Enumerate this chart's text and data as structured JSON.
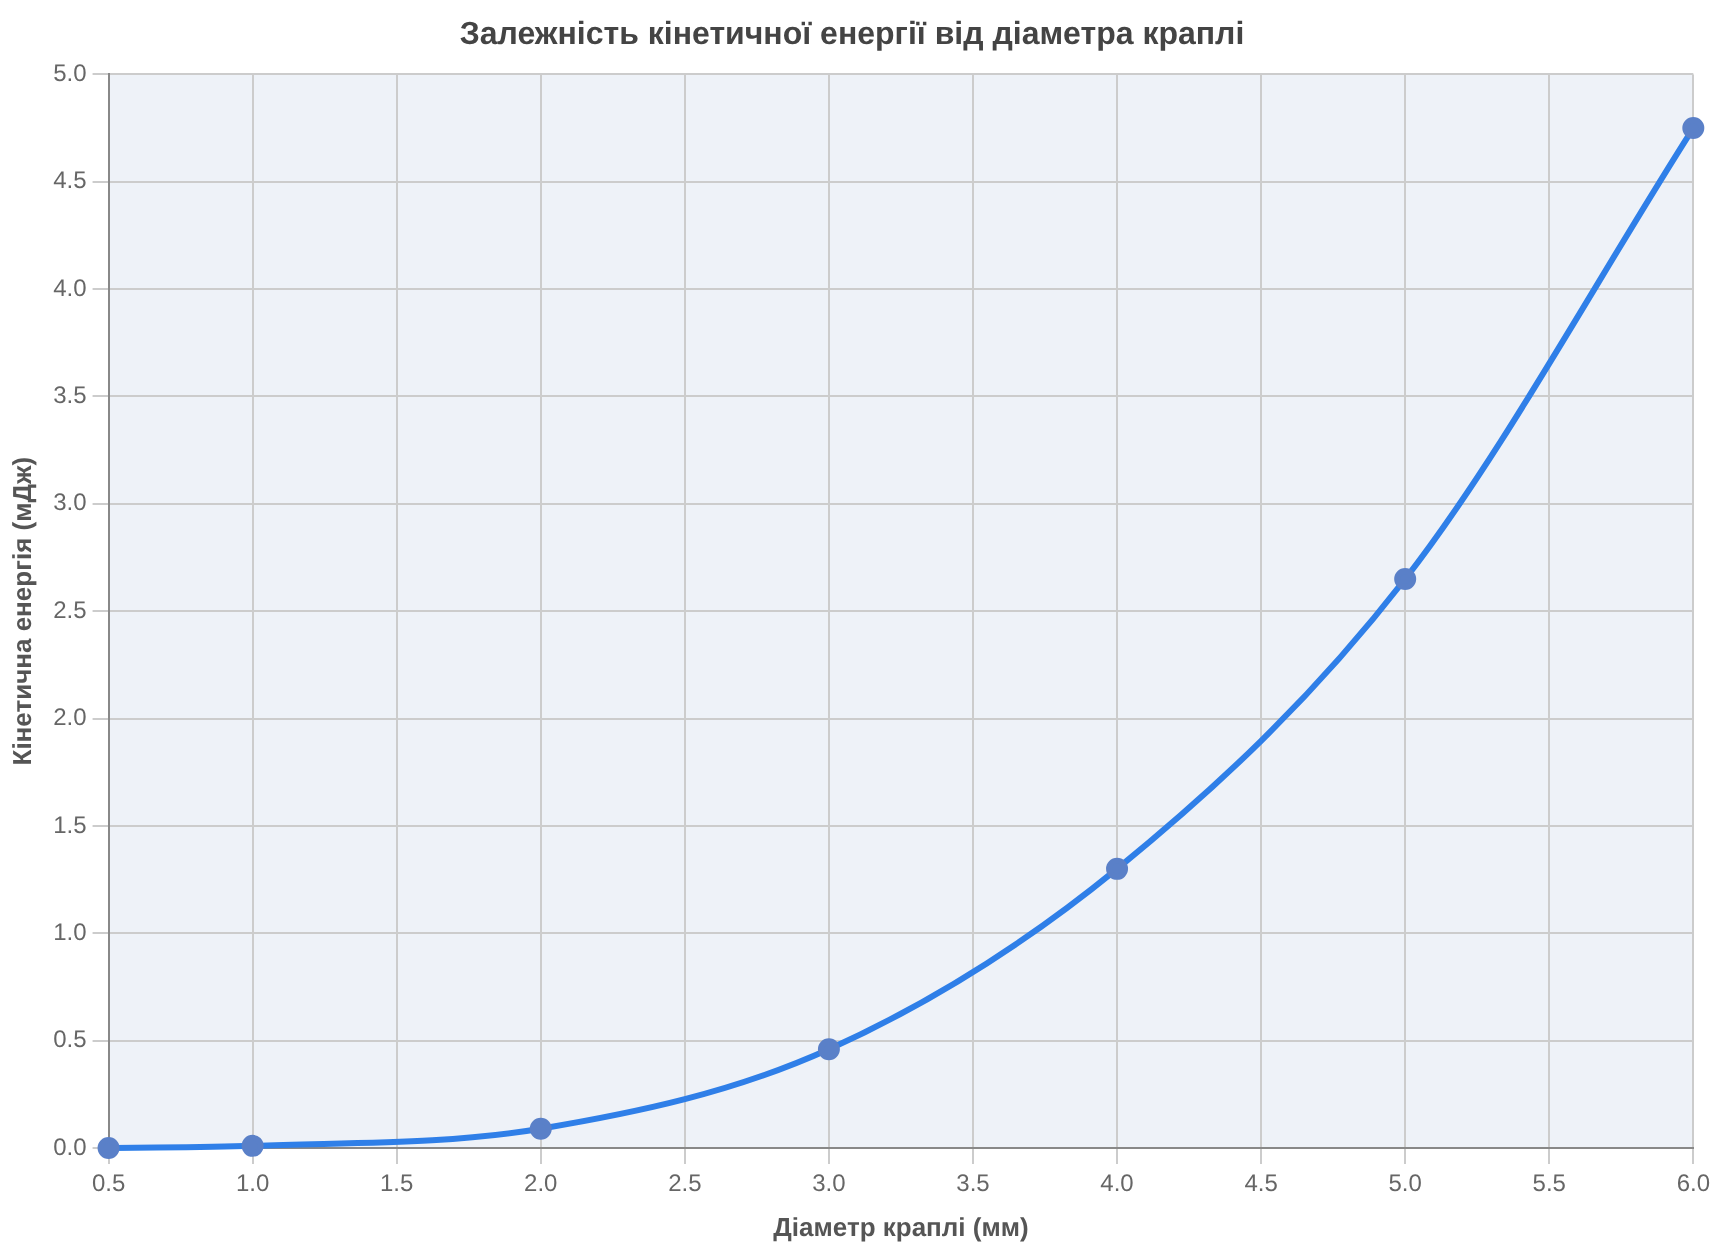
{
  "chart_data": {
    "type": "line",
    "title": "Залежність кінетичної енергії від діаметра краплі",
    "xlabel": "Діаметр краплі (мм)",
    "ylabel": "Кінетична енергія (мДж)",
    "x": [
      0.5,
      1,
      2,
      3,
      4,
      5,
      6
    ],
    "series": [
      {
        "color": "#2f7fe8",
        "values": [
          0,
          0.01,
          0.09,
          0.46,
          1.3,
          2.65,
          4.75
        ]
      }
    ],
    "xlim": [
      0.5,
      6
    ],
    "xticks": [
      {
        "value": 0.5,
        "label": "0.5"
      },
      {
        "value": 1,
        "label": "1.0"
      },
      {
        "value": 1.5,
        "label": "1.5"
      },
      {
        "value": 2,
        "label": "2.0"
      },
      {
        "value": 2.5,
        "label": "2.5"
      },
      {
        "value": 3,
        "label": "3.0"
      },
      {
        "value": 3.5,
        "label": "3.5"
      },
      {
        "value": 4,
        "label": "4.0"
      },
      {
        "value": 4.5,
        "label": "4.5"
      },
      {
        "value": 5,
        "label": "5.0"
      },
      {
        "value": 5.5,
        "label": "5.5"
      },
      {
        "value": 6,
        "label": "6.0"
      }
    ],
    "ylim": [
      0,
      5
    ],
    "yticks": [
      {
        "value": 0,
        "label": "0.0"
      },
      {
        "value": 0.5,
        "label": "0.5"
      },
      {
        "value": 1,
        "label": "1.0"
      },
      {
        "value": 1.5,
        "label": "1.5"
      },
      {
        "value": 2,
        "label": "2.0"
      },
      {
        "value": 2.5,
        "label": "2.5"
      },
      {
        "value": 3,
        "label": "3.0"
      },
      {
        "value": 3.5,
        "label": "3.5"
      },
      {
        "value": 4,
        "label": "4.0"
      },
      {
        "value": 4.5,
        "label": "4.5"
      },
      {
        "value": 5,
        "label": "5.0"
      }
    ],
    "grid": true,
    "legend": false,
    "marker": "circle",
    "line_style": "solid"
  }
}
